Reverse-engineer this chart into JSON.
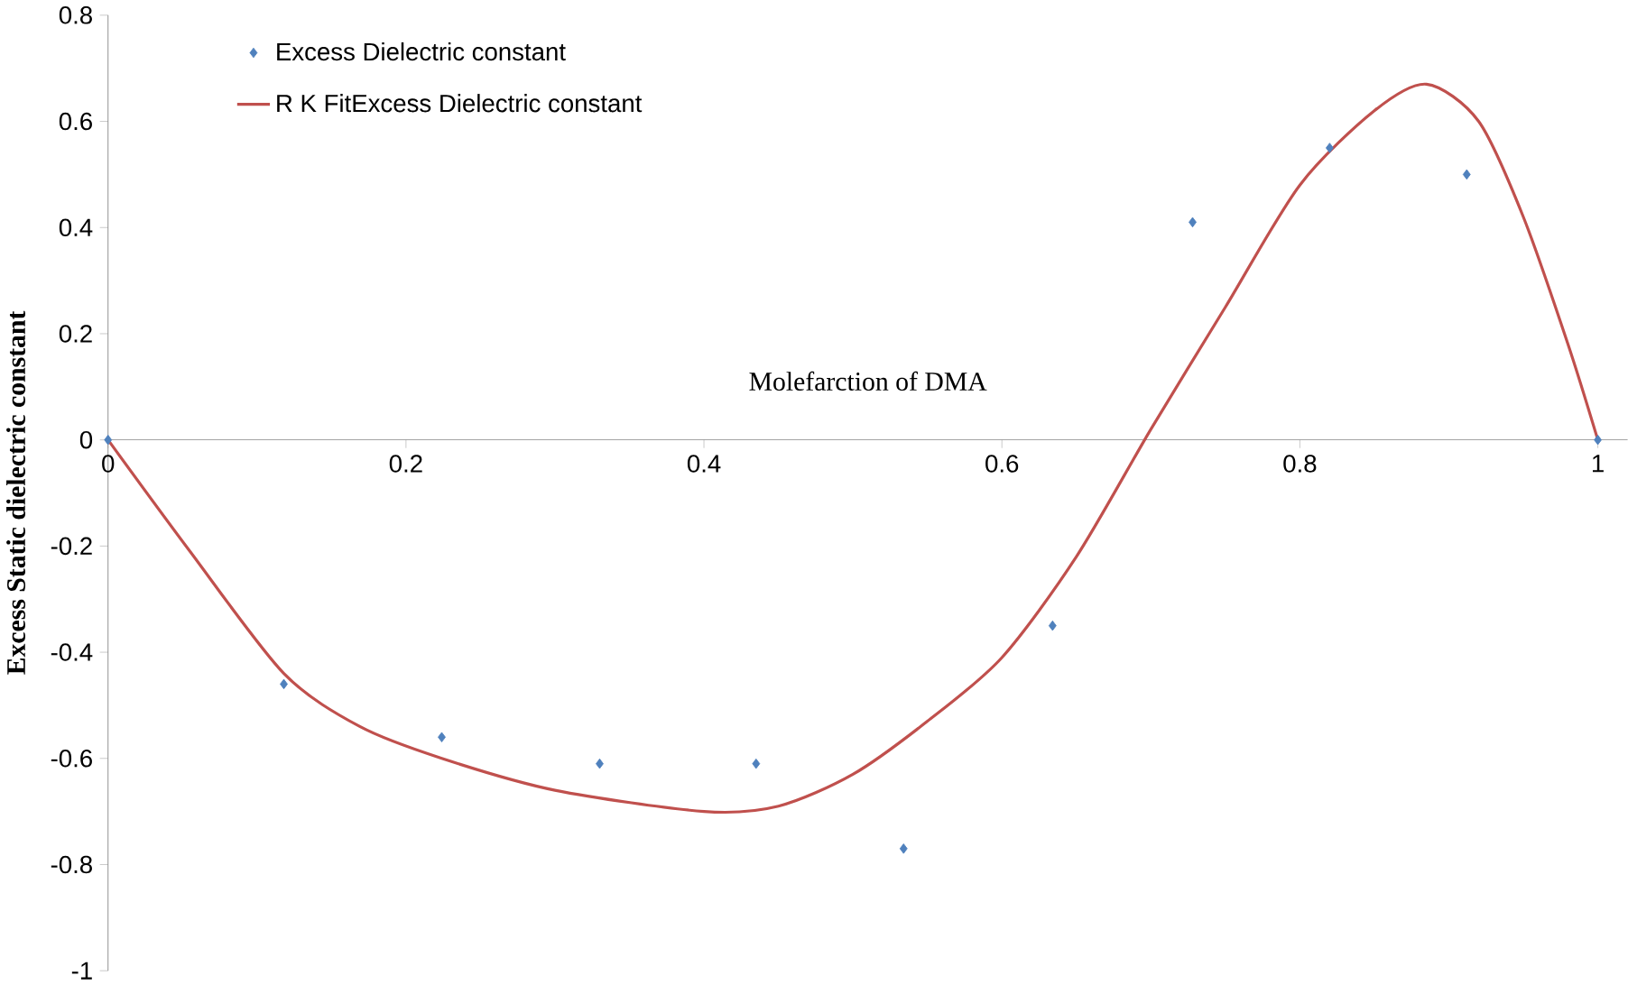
{
  "chart_data": {
    "type": "scatter",
    "xlabel": "Molefarction of DMA",
    "ylabel": "Excess Static dielectric constant",
    "xlim": [
      0,
      1.02
    ],
    "ylim": [
      -1,
      0.8
    ],
    "xticks": [
      0,
      0.2,
      0.4,
      0.6,
      0.8,
      1
    ],
    "yticks": [
      -1,
      -0.8,
      -0.6,
      -0.4,
      -0.2,
      0,
      0.2,
      0.4,
      0.6,
      0.8
    ],
    "legend": "top left",
    "grid": false,
    "series": [
      {
        "name": "Excess Dielectric constant",
        "marker": "diamond",
        "color": "#4f81bd",
        "x": [
          0,
          0.118,
          0.224,
          0.33,
          0.435,
          0.534,
          0.634,
          0.728,
          0.82,
          0.912,
          1
        ],
        "values": [
          0,
          -0.46,
          -0.56,
          -0.61,
          -0.61,
          -0.77,
          -0.35,
          0.41,
          0.55,
          0.5,
          0
        ]
      },
      {
        "name": "R K FitExcess Dielectric constant",
        "type": "line",
        "marker": "none",
        "line_style": "solid",
        "color": "#c0504d",
        "x": [
          0,
          0.055,
          0.118,
          0.169,
          0.224,
          0.3,
          0.4,
          0.45,
          0.5,
          0.55,
          0.6,
          0.65,
          0.7,
          0.75,
          0.8,
          0.85,
          0.885,
          0.92,
          0.95,
          0.98,
          1
        ],
        "values": [
          0,
          -0.21,
          -0.44,
          -0.54,
          -0.6,
          -0.66,
          -0.7,
          -0.69,
          -0.63,
          -0.53,
          -0.41,
          -0.22,
          0.02,
          0.25,
          0.48,
          0.62,
          0.67,
          0.6,
          0.42,
          0.18,
          0
        ]
      }
    ]
  }
}
